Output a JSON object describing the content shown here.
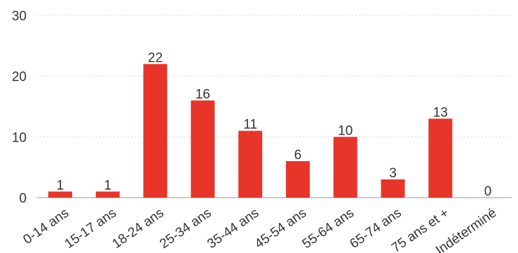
{
  "chart_data": {
    "type": "bar",
    "categories": [
      "0-14 ans",
      "15-17 ans",
      "18-24 ans",
      "25-34 ans",
      "35-44 ans",
      "45-54 ans",
      "55-64 ans",
      "65-74 ans",
      "75 ans et +",
      "Indéterminé"
    ],
    "values": [
      1,
      1,
      22,
      16,
      11,
      6,
      10,
      3,
      13,
      0
    ],
    "data_labels": [
      "1",
      "1",
      "22",
      "16",
      "11",
      "6",
      "10",
      "3",
      "13",
      "0"
    ],
    "y_ticks": [
      "0",
      "10",
      "20",
      "30"
    ],
    "ylim": [
      0,
      30
    ],
    "grid": true,
    "bar_color": "#e8352a",
    "title": "",
    "xlabel": "",
    "ylabel": ""
  }
}
